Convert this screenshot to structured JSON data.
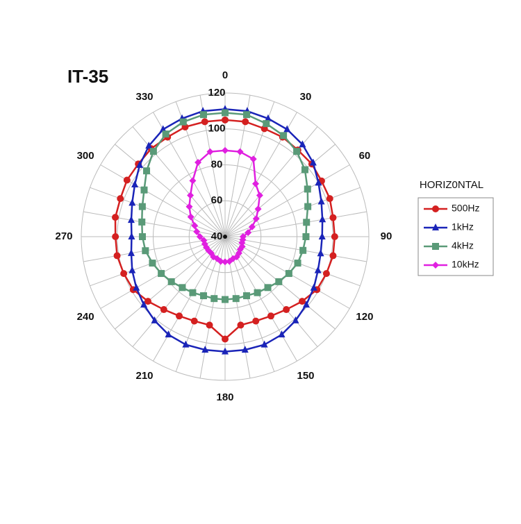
{
  "chart_data": {
    "type": "polar",
    "title": "IT-35",
    "legend_title": "HORIZ0NTAL",
    "legend": "right",
    "theta": [
      0,
      10,
      20,
      30,
      40,
      50,
      60,
      70,
      80,
      90,
      100,
      110,
      120,
      130,
      140,
      150,
      160,
      170,
      180,
      190,
      200,
      210,
      220,
      230,
      240,
      250,
      260,
      270,
      280,
      290,
      300,
      310,
      320,
      330,
      340,
      350
    ],
    "thetaticks": [
      0,
      30,
      60,
      90,
      120,
      150,
      180,
      210,
      240,
      270,
      300,
      330
    ],
    "rlim": [
      40,
      120
    ],
    "rticks": [
      40,
      60,
      80,
      100,
      120
    ],
    "grid": true,
    "series": [
      {
        "name": "500Hz",
        "color": "#d42020",
        "marker": "circle",
        "values": [
          105,
          105,
          104,
          104,
          103,
          103,
          102,
          102,
          101,
          101,
          101,
          100,
          99,
          96,
          93,
          91,
          90,
          90,
          97,
          90,
          90,
          91,
          93,
          96,
          99,
          100,
          101,
          101,
          102,
          102,
          103,
          103,
          104,
          104,
          105,
          105
        ]
      },
      {
        "name": "1kHz",
        "color": "#1a24b8",
        "marker": "triangle",
        "values": [
          111,
          111,
          110,
          109,
          107,
          104,
          100,
          97,
          95,
          94,
          94,
          95,
          97,
          99,
          101,
          103,
          104,
          104,
          104,
          104,
          104,
          103,
          101,
          99,
          97,
          95,
          93,
          92,
          93,
          95,
          98,
          102,
          106,
          109,
          110,
          111
        ]
      },
      {
        "name": "4kHz",
        "color": "#5a9a78",
        "marker": "square",
        "values": [
          109,
          109,
          107,
          105,
          102,
          98,
          93,
          89,
          86,
          85,
          84,
          83,
          81,
          79,
          77,
          76,
          75,
          75,
          75,
          75,
          75,
          76,
          77,
          79,
          81,
          83,
          85,
          86,
          87,
          89,
          92,
          97,
          102,
          106,
          108,
          109
        ]
      },
      {
        "name": "10kHz",
        "color": "#e020e0",
        "marker": "diamond",
        "values": [
          88,
          88,
          86,
          74,
          70,
          64,
          60,
          56,
          53,
          50,
          50,
          50,
          51,
          51,
          52,
          53,
          53,
          54,
          54,
          54,
          53,
          53,
          52,
          52,
          52,
          52,
          52,
          54,
          56,
          58,
          62,
          66,
          70,
          76,
          84,
          88
        ]
      }
    ]
  }
}
